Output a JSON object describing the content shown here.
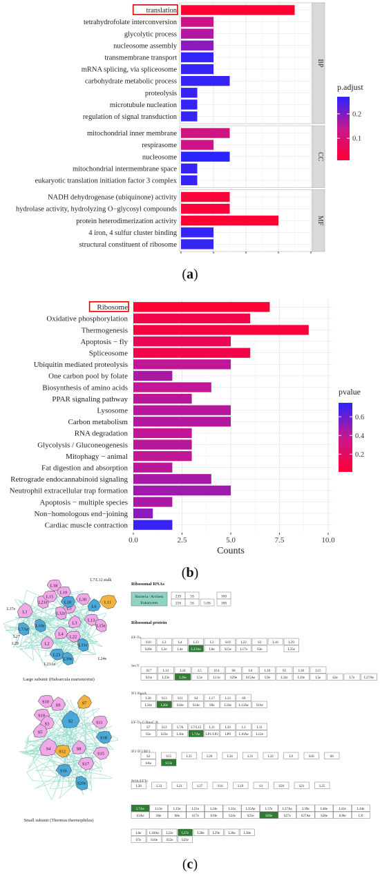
{
  "figure": {
    "panel_a_label_open": "(",
    "panel_a_letter": "a",
    "panel_a_label_close": ")",
    "panel_b_label_open": "(",
    "panel_b_letter": "b",
    "panel_b_label_close": ")",
    "panel_c_label_open": "(",
    "panel_c_letter": "c",
    "panel_c_label_close": ")"
  },
  "colors": {
    "high": "#ff0033",
    "mid": "#c8168f",
    "low": "#2a24ff",
    "grid": "#e6e6e6",
    "strip": "#d9d9d9",
    "green": "#2e7d32",
    "blue_protein": "#4aa8d8",
    "pink_protein": "#f0a8e8",
    "orange_protein": "#f2b23e"
  },
  "chart_data": [
    {
      "type": "bar",
      "orientation": "horizontal",
      "highlighted_category": "translation",
      "categories": [
        "translation",
        "tetrahydrofolate interconversion",
        "glycolytic process",
        "nucleosome assembly",
        "transmembrane transport",
        "mRNA splicing, via spliceosome",
        "carbohydrate metabolic process",
        "proteolysis",
        "microtubule nucleation",
        "regulation of signal transduction",
        "mitochondrial inner membrane",
        "respirasome",
        "nucleosome",
        "mitochondrial intermembrane space",
        "eukaryotic translation initiation factor 3 complex",
        "NADH dehydrogenase (ubiquinone) activity",
        "hydrolase activity, hydrolyzing O−glycosyl compounds",
        "protein heterodimerization activity",
        "4 iron, 4 sulfur cluster binding",
        "structural constituent of ribosome"
      ],
      "values": [
        7,
        2,
        2,
        2,
        2,
        2,
        3,
        1,
        1,
        1,
        3,
        2,
        3,
        1,
        1,
        3,
        3,
        6,
        2,
        2
      ],
      "p_adjust": [
        0.01,
        0.13,
        0.16,
        0.19,
        0.26,
        0.26,
        0.26,
        0.26,
        0.26,
        0.26,
        0.12,
        0.13,
        0.27,
        0.26,
        0.26,
        0.02,
        0.02,
        0.01,
        0.26,
        0.26
      ],
      "facets": [
        {
          "name": "BP",
          "rows": 10
        },
        {
          "name": "CC",
          "rows": 5
        },
        {
          "name": "MF",
          "rows": 5
        }
      ],
      "xlim": [
        0,
        8
      ],
      "xticks": [
        "0",
        "2",
        "4",
        "6",
        "8"
      ],
      "legend": {
        "title": "p.adjust",
        "ticks": [
          0.2,
          0.1
        ],
        "tick_labels": [
          "0.2",
          "0.1"
        ],
        "range": [
          0.01,
          0.27
        ],
        "placement": "right"
      },
      "grid": true
    },
    {
      "type": "bar",
      "orientation": "horizontal",
      "highlighted_category": "Ribosome",
      "categories": [
        "Ribosome",
        "Oxidative phosphorylation",
        "Thermogenesis",
        "Apoptosis − fly",
        "Spliceosome",
        "Ubiquitin mediated proteolysis",
        "One carbon pool by folate",
        "Biosynthesis of amino acids",
        "PPAR signaling pathway",
        "Lysosome",
        "Carbon metabolism",
        "RNA degradation",
        "Glycolysis / Gluconeogenesis",
        "Mitophagy − animal",
        "Fat digestion and absorption",
        "Retrograde endocannabinoid signaling",
        "Neutrophil extracellular trap formation",
        "Apoptosis − multiple species",
        "Non−homologous end−joining",
        "Cardiac muscle contraction"
      ],
      "values": [
        7,
        6,
        9,
        5,
        6,
        5,
        2,
        4,
        3,
        5,
        5,
        3,
        3,
        3,
        2,
        4,
        5,
        2,
        1,
        2
      ],
      "pvalue": [
        0.02,
        0.1,
        0.05,
        0.15,
        0.1,
        0.4,
        0.45,
        0.4,
        0.42,
        0.42,
        0.43,
        0.4,
        0.42,
        0.4,
        0.42,
        0.46,
        0.48,
        0.45,
        0.52,
        0.72
      ],
      "xlim": [
        0,
        10
      ],
      "xticks": [
        "0.0",
        "2.5",
        "5.0",
        "7.5",
        "10.0"
      ],
      "xlabel": "Counts",
      "legend": {
        "title": "pvalue",
        "ticks": [
          0.6,
          0.4,
          0.2
        ],
        "tick_labels": [
          "0.6",
          "0.4",
          "0.2"
        ],
        "range": [
          0.01,
          0.75
        ],
        "placement": "right"
      },
      "grid": true
    }
  ],
  "panel_c": {
    "large_subunit_caption": "Large subunit (Haloarcula marismortui)",
    "small_subunit_caption": "Small subunit (Thermus thermophilus)",
    "large_subunit_labels": [
      "L18",
      "L7/L12 stalk",
      "L1",
      "L5",
      "L21e",
      "L15",
      "L30",
      "L19",
      "L11",
      "L10",
      "L6",
      "L13",
      "L32e",
      "L3",
      "L15e",
      "L37e",
      "L7Ae",
      "L10e",
      "L27",
      "L2",
      "L29",
      "L22",
      "L31e",
      "L4",
      "L23",
      "L39e",
      "L23Ae",
      "L24e"
    ],
    "small_subunit_labels": [
      "S10",
      "S9",
      "S19",
      "S3",
      "S5",
      "S2",
      "S7",
      "S11",
      "S4",
      "S12",
      "S8",
      "S18",
      "S15",
      "S17",
      "S16",
      "S20e"
    ],
    "ribosomal_rnas_title": "Ribosomal RNAs",
    "rna_legend": [
      "Bacteria / Archaea",
      "Eukaryotes"
    ],
    "rna_rows": [
      [
        "23S",
        "5S",
        "16S"
      ],
      [
        "25S",
        "5S",
        "5.8S",
        "18S"
      ]
    ],
    "ribosomal_protein_title": "Ribosomal protein",
    "protein_rows": [
      {
        "label": "EF-Tu",
        "top": [
          "S10",
          "L3",
          "L4",
          "L23",
          "L2",
          "S19",
          "L22",
          "S3",
          "L16",
          "L29"
        ],
        "bottom": [
          "S20e",
          "L3e",
          "L4e",
          "L23Ae",
          "L8e",
          "S15e",
          "L17e",
          "S3e",
          "",
          "L35e"
        ]
      },
      {
        "label": "SecY",
        "top": [
          "S17",
          "L14",
          "L24",
          "L5",
          "S14",
          "S8",
          "L6",
          "L18",
          "S5",
          "L30",
          "L15"
        ],
        "bottom": [
          "S11e",
          "L23e",
          "L26e",
          "L5e",
          "L11e",
          "S29e",
          "S15Ae",
          "L9e",
          "L32e",
          "L19e",
          "L5e",
          "S2e",
          "L7e",
          "L27Ae"
        ]
      },
      {
        "label": "IF1 RpoA",
        "top": [
          "L36",
          "S13",
          "S11",
          "S4",
          "L17",
          "L13",
          "S9"
        ],
        "bottom": [
          "L34e",
          "L20e",
          "S18e",
          "S14e",
          "S9e",
          "L18e",
          "L13Ae",
          "S16e"
        ]
      },
      {
        "label": "EF-Tu,G RpoC,B",
        "top": [
          "S7",
          "S12",
          "L7A",
          "L7/L12",
          "L11",
          "L10",
          "L1",
          "L11"
        ],
        "bottom": [
          "S5e",
          "S23e",
          "L30e",
          "L7Ae",
          "LP1/LP2",
          "LP0",
          "L10Ae",
          "L12e"
        ]
      },
      {
        "label": "IF2 IF3 RF1",
        "top": [
          "S2",
          "S15",
          "L35",
          "L20",
          "L34",
          "L31",
          "L32",
          "L9",
          "S18",
          "S6"
        ],
        "bottom": [
          "SAe",
          "S13e"
        ]
      },
      {
        "label": "PrfA/EFTs",
        "top": [
          "L28",
          "L33",
          "L21",
          "L27",
          "S16",
          "L19",
          "S1",
          "S20",
          "S21",
          "L25"
        ],
        "bottom": []
      },
      {
        "label": "",
        "top": [
          "L7Ae",
          "L13e",
          "L15e",
          "L21e",
          "L24e",
          "L31e",
          "L35Ae",
          "L37e",
          "L37Ae",
          "L39e",
          "L40e",
          "L41e",
          "L44e"
        ],
        "bottom": [
          "S3Ae",
          "S6e",
          "S8e",
          "S17e",
          "S19e",
          "S24e",
          "S25e",
          "S26e",
          "S27e",
          "S27Ae",
          "S28e",
          "S30e",
          "LX"
        ]
      },
      {
        "label": "",
        "top": [
          "L6e",
          "L18Ae",
          "L22e",
          "L27e",
          "L28e",
          "L29e",
          "L36e",
          "L38e"
        ],
        "bottom": [
          "S7e",
          "S10e",
          "S12e",
          "S21e"
        ]
      }
    ]
  }
}
